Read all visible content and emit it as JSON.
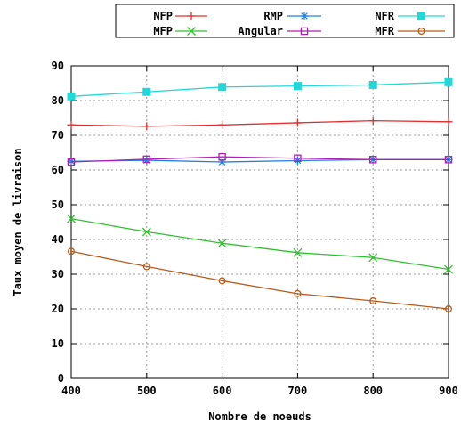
{
  "chart_data": {
    "type": "line",
    "title": "",
    "xlabel": "Nombre de noeuds",
    "ylabel": "Taux moyen de livraison",
    "x": [
      400,
      500,
      600,
      700,
      800,
      900
    ],
    "xlim": [
      400,
      900
    ],
    "ylim": [
      0,
      90
    ],
    "xticks": [
      "400",
      "500",
      "600",
      "700",
      "800",
      "900"
    ],
    "yticks": [
      "0",
      "10",
      "20",
      "30",
      "40",
      "50",
      "60",
      "70",
      "80",
      "90"
    ],
    "grid": true,
    "legend_position": "top",
    "series": [
      {
        "name": "NFP",
        "marker": "plus",
        "color": "#e03030",
        "values": [
          73.0,
          72.6,
          73.0,
          73.6,
          74.2,
          73.9
        ]
      },
      {
        "name": "MFP",
        "marker": "x",
        "color": "#30c030",
        "values": [
          46.0,
          42.2,
          38.9,
          36.2,
          34.8,
          31.4
        ]
      },
      {
        "name": "RMP",
        "marker": "star",
        "color": "#2080e0",
        "values": [
          62.5,
          62.8,
          62.3,
          62.7,
          63.0,
          63.0
        ]
      },
      {
        "name": "Angular",
        "marker": "square-open",
        "color": "#b020b0",
        "values": [
          62.3,
          63.1,
          63.8,
          63.4,
          63.0,
          63.0
        ]
      },
      {
        "name": "NFR",
        "marker": "square-filled",
        "color": "#20d8d8",
        "values": [
          81.2,
          82.5,
          83.9,
          84.2,
          84.5,
          85.3
        ]
      },
      {
        "name": "MFR",
        "marker": "circle-open",
        "color": "#b85a1a",
        "values": [
          36.6,
          32.2,
          28.1,
          24.4,
          22.3,
          20.0
        ]
      }
    ]
  }
}
